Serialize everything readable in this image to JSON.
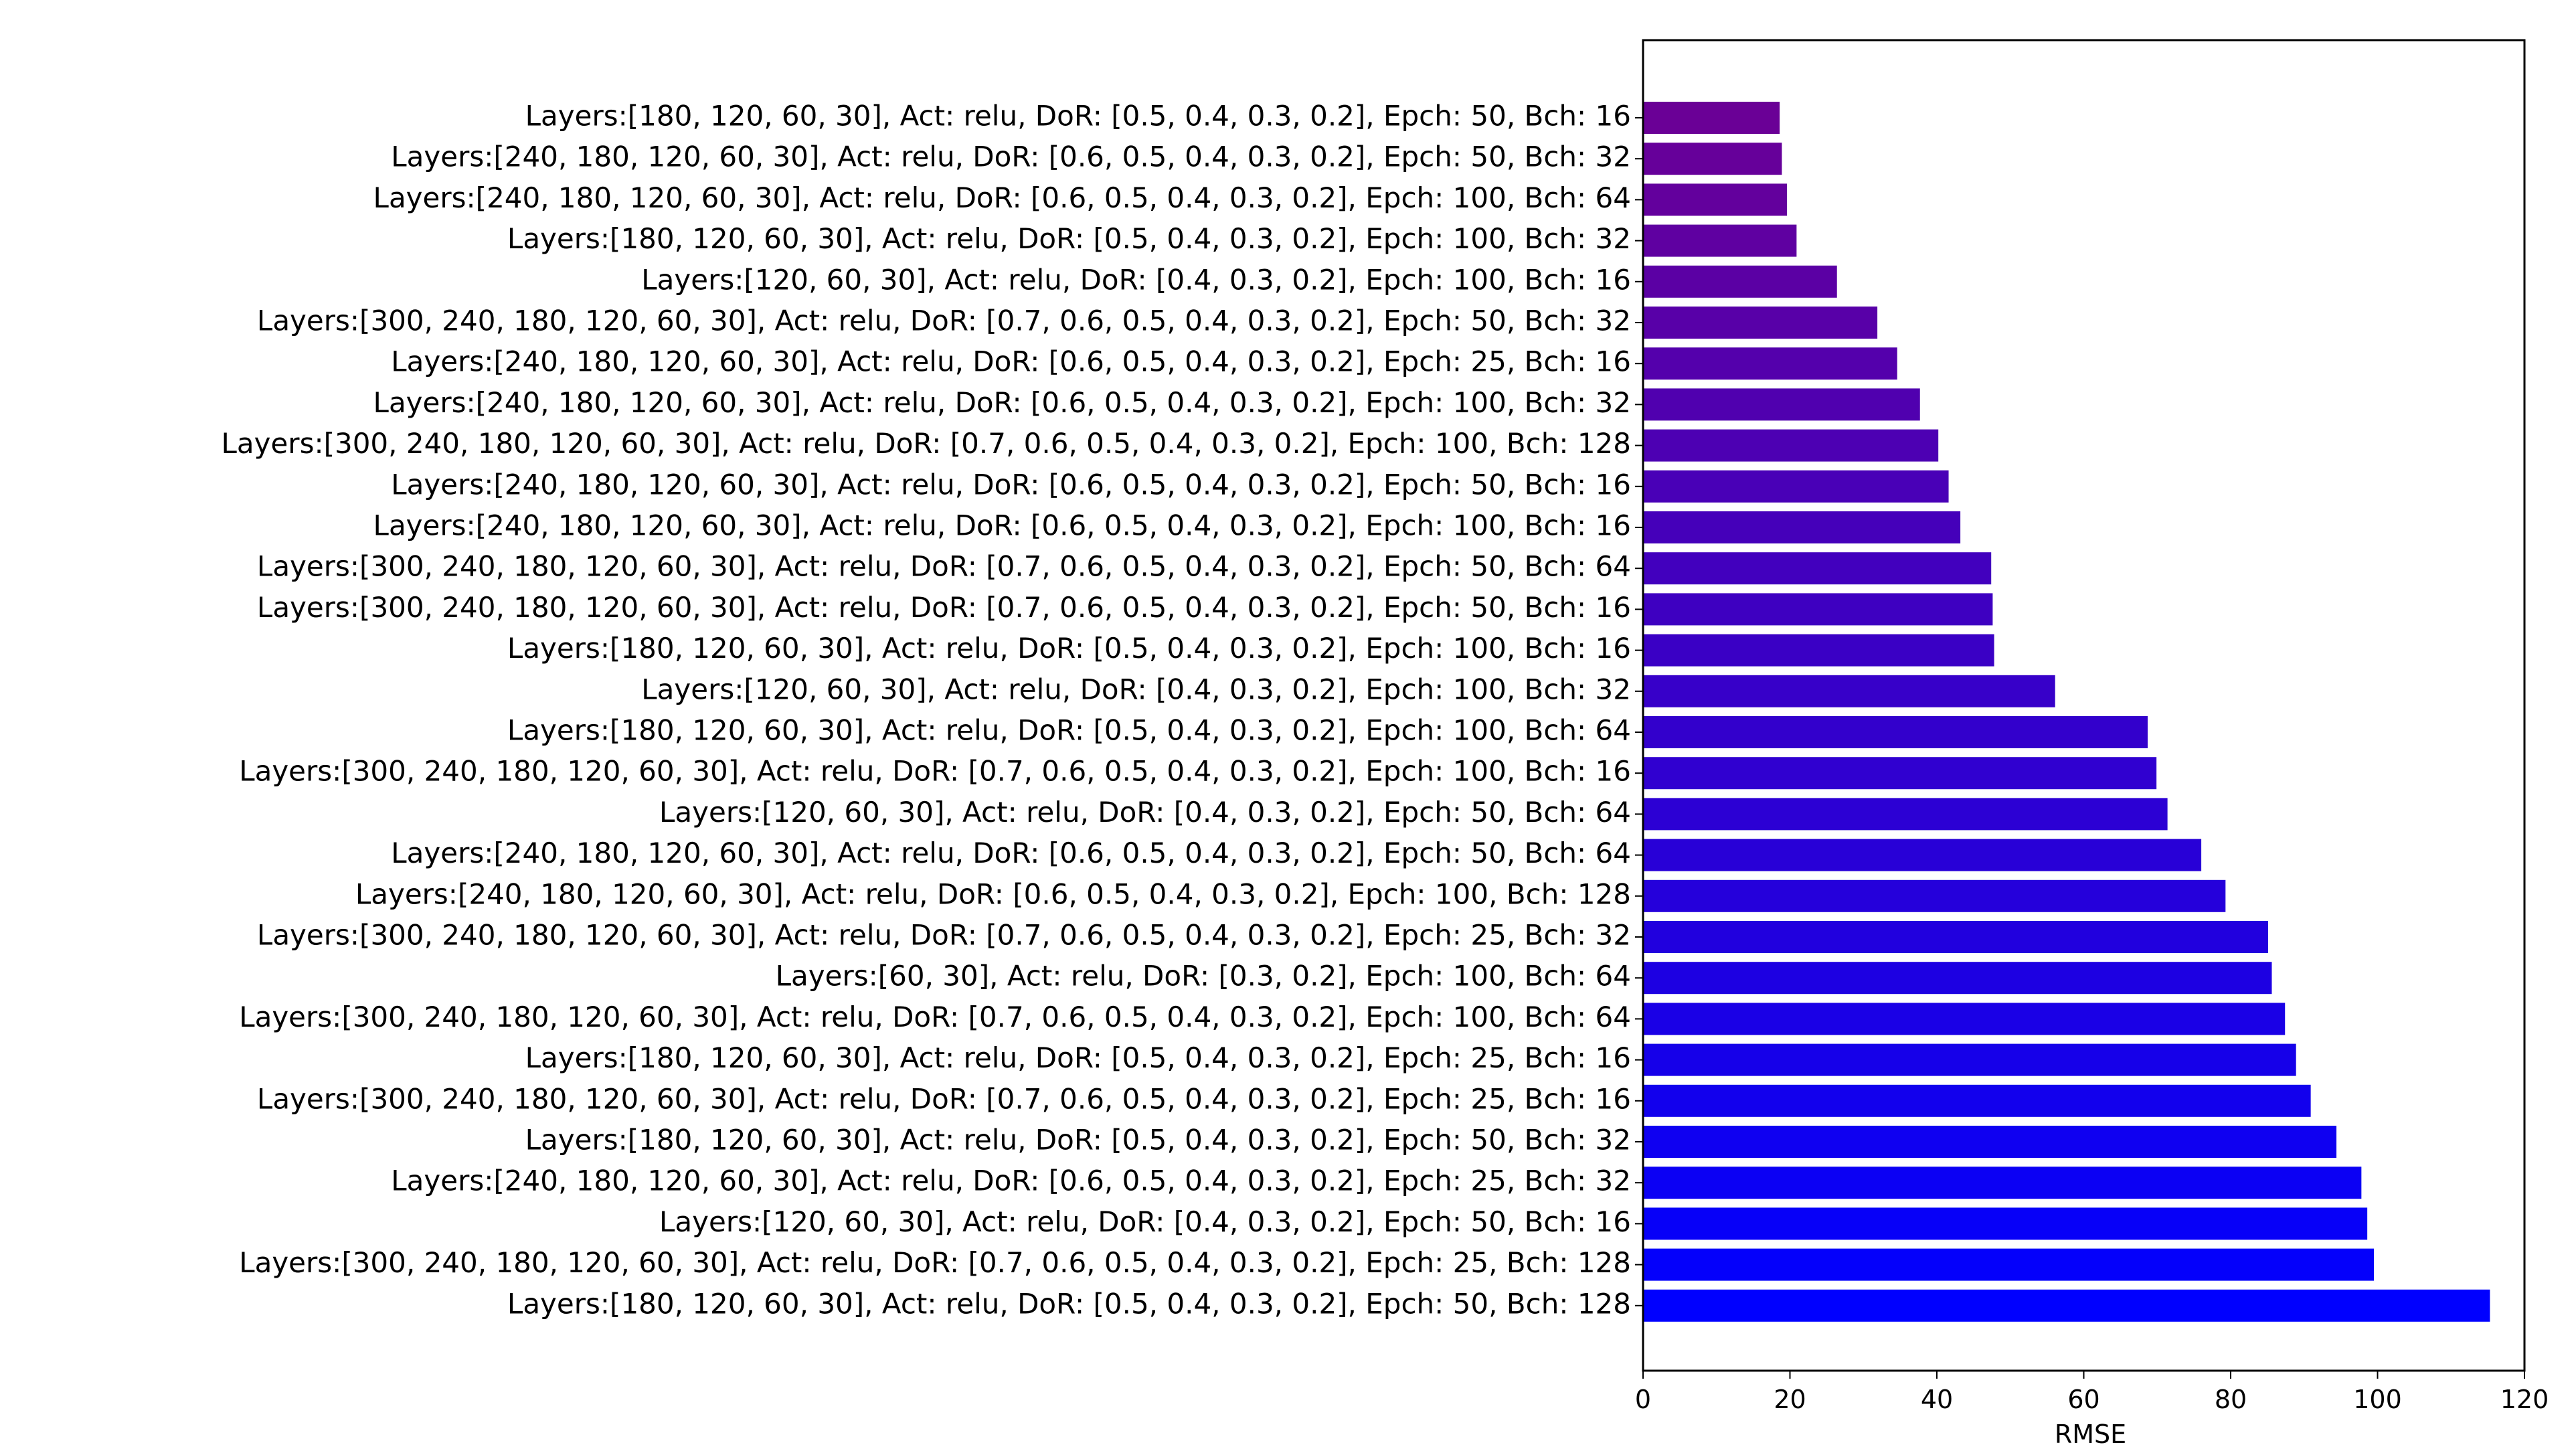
{
  "chart_data": {
    "type": "bar",
    "orientation": "horizontal",
    "xlabel": "RMSE",
    "xlim": [
      0,
      120
    ],
    "xticks": [
      0,
      20,
      40,
      60,
      80,
      100,
      120
    ],
    "grid": false,
    "color_top": "#6a0096",
    "color_bottom": "#0000ff",
    "categories": [
      "Layers:[180, 120, 60, 30], Act: relu, DoR: [0.5, 0.4, 0.3, 0.2], Epch: 50, Bch: 16",
      "Layers:[240, 180, 120, 60, 30], Act: relu, DoR: [0.6, 0.5, 0.4, 0.3, 0.2], Epch: 50, Bch: 32",
      "Layers:[240, 180, 120, 60, 30], Act: relu, DoR: [0.6, 0.5, 0.4, 0.3, 0.2], Epch: 100, Bch: 64",
      "Layers:[180, 120, 60, 30], Act: relu, DoR: [0.5, 0.4, 0.3, 0.2], Epch: 100, Bch: 32",
      "Layers:[120, 60, 30], Act: relu, DoR: [0.4, 0.3, 0.2], Epch: 100, Bch: 16",
      "Layers:[300, 240, 180, 120, 60, 30], Act: relu, DoR: [0.7, 0.6, 0.5, 0.4, 0.3, 0.2], Epch: 50, Bch: 32",
      "Layers:[240, 180, 120, 60, 30], Act: relu, DoR: [0.6, 0.5, 0.4, 0.3, 0.2], Epch: 25, Bch: 16",
      "Layers:[240, 180, 120, 60, 30], Act: relu, DoR: [0.6, 0.5, 0.4, 0.3, 0.2], Epch: 100, Bch: 32",
      "Layers:[300, 240, 180, 120, 60, 30], Act: relu, DoR: [0.7, 0.6, 0.5, 0.4, 0.3, 0.2], Epch: 100, Bch: 128",
      "Layers:[240, 180, 120, 60, 30], Act: relu, DoR: [0.6, 0.5, 0.4, 0.3, 0.2], Epch: 50, Bch: 16",
      "Layers:[240, 180, 120, 60, 30], Act: relu, DoR: [0.6, 0.5, 0.4, 0.3, 0.2], Epch: 100, Bch: 16",
      "Layers:[300, 240, 180, 120, 60, 30], Act: relu, DoR: [0.7, 0.6, 0.5, 0.4, 0.3, 0.2], Epch: 50, Bch: 64",
      "Layers:[300, 240, 180, 120, 60, 30], Act: relu, DoR: [0.7, 0.6, 0.5, 0.4, 0.3, 0.2], Epch: 50, Bch: 16",
      "Layers:[180, 120, 60, 30], Act: relu, DoR: [0.5, 0.4, 0.3, 0.2], Epch: 100, Bch: 16",
      "Layers:[120, 60, 30], Act: relu, DoR: [0.4, 0.3, 0.2], Epch: 100, Bch: 32",
      "Layers:[180, 120, 60, 30], Act: relu, DoR: [0.5, 0.4, 0.3, 0.2], Epch: 100, Bch: 64",
      "Layers:[300, 240, 180, 120, 60, 30], Act: relu, DoR: [0.7, 0.6, 0.5, 0.4, 0.3, 0.2], Epch: 100, Bch: 16",
      "Layers:[120, 60, 30], Act: relu, DoR: [0.4, 0.3, 0.2], Epch: 50, Bch: 64",
      "Layers:[240, 180, 120, 60, 30], Act: relu, DoR: [0.6, 0.5, 0.4, 0.3, 0.2], Epch: 50, Bch: 64",
      "Layers:[240, 180, 120, 60, 30], Act: relu, DoR: [0.6, 0.5, 0.4, 0.3, 0.2], Epch: 100, Bch: 128",
      "Layers:[300, 240, 180, 120, 60, 30], Act: relu, DoR: [0.7, 0.6, 0.5, 0.4, 0.3, 0.2], Epch: 25, Bch: 32",
      "Layers:[60, 30], Act: relu, DoR: [0.3, 0.2], Epch: 100, Bch: 64",
      "Layers:[300, 240, 180, 120, 60, 30], Act: relu, DoR: [0.7, 0.6, 0.5, 0.4, 0.3, 0.2], Epch: 100, Bch: 64",
      "Layers:[180, 120, 60, 30], Act: relu, DoR: [0.5, 0.4, 0.3, 0.2], Epch: 25, Bch: 16",
      "Layers:[300, 240, 180, 120, 60, 30], Act: relu, DoR: [0.7, 0.6, 0.5, 0.4, 0.3, 0.2], Epch: 25, Bch: 16",
      "Layers:[180, 120, 60, 30], Act: relu, DoR: [0.5, 0.4, 0.3, 0.2], Epch: 50, Bch: 32",
      "Layers:[240, 180, 120, 60, 30], Act: relu, DoR: [0.6, 0.5, 0.4, 0.3, 0.2], Epch: 25, Bch: 32",
      "Layers:[120, 60, 30], Act: relu, DoR: [0.4, 0.3, 0.2], Epch: 50, Bch: 16",
      "Layers:[300, 240, 180, 120, 60, 30], Act: relu, DoR: [0.7, 0.6, 0.5, 0.4, 0.3, 0.2], Epch: 25, Bch: 128",
      "Layers:[180, 120, 60, 30], Act: relu, DoR: [0.5, 0.4, 0.3, 0.2], Epch: 50, Bch: 128"
    ],
    "values": [
      18.6,
      18.9,
      19.6,
      20.9,
      26.4,
      31.9,
      34.6,
      37.7,
      40.2,
      41.6,
      43.2,
      47.4,
      47.6,
      47.8,
      56.1,
      68.7,
      69.9,
      71.4,
      76.0,
      79.3,
      85.1,
      85.6,
      87.4,
      88.9,
      90.9,
      94.4,
      97.8,
      98.6,
      99.5,
      115.3
    ]
  }
}
